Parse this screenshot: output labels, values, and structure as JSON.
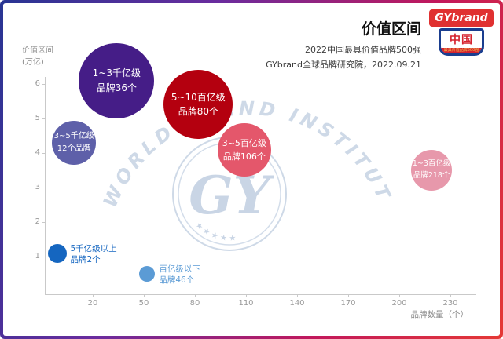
{
  "header": {
    "title": "价值区间",
    "subtitle1": "2022中国最具价值品牌500强",
    "subtitle2": "GYbrand全球品牌研究院，2022.09.21"
  },
  "logo": {
    "brand": "GYbrand",
    "country": "中国",
    "ribbon": "最具价值品牌500强"
  },
  "axes": {
    "y_unit_line1": "价值区间",
    "y_unit_line2": "(万亿)",
    "x_label": "品牌数量（个）"
  },
  "watermark": {
    "arc_text": "WORLD BRAND INSTITUTE",
    "center_text": "GY",
    "stars": "★ ★ ★ ★ ★"
  },
  "colors": {
    "frame_gradient": [
      "#283593",
      "#6a2c9e",
      "#c2185b",
      "#e53935"
    ],
    "logo_red": "#e03131",
    "logo_blue": "#1b3e8f"
  },
  "chart_data": {
    "type": "scatter",
    "title": "价值区间",
    "xlabel": "品牌数量（个）",
    "ylabel": "价值区间(万亿)",
    "xlim": [
      -10,
      245
    ],
    "ylim": [
      0,
      6.8
    ],
    "x_ticks": [
      20,
      50,
      80,
      110,
      140,
      170,
      200,
      230
    ],
    "y_ticks": [
      1,
      2,
      3,
      4,
      5,
      6
    ],
    "grid": false,
    "legend": false,
    "points": [
      {
        "range": "1~3千亿级",
        "label": "品牌36个",
        "x": 34,
        "y": 6.1,
        "r": 48,
        "color": "#451d87",
        "text_color": "#ffffff",
        "label_inside": true
      },
      {
        "range": "5~10百亿级",
        "label": "品牌80个",
        "x": 82,
        "y": 5.4,
        "r": 44,
        "color": "#b4000f",
        "text_color": "#ffffff",
        "label_inside": true
      },
      {
        "range": "3~5千亿级",
        "label": "12个品牌",
        "x": 9,
        "y": 4.3,
        "r": 28,
        "color": "#5e60a9",
        "text_color": "#ffffff",
        "label_inside": true
      },
      {
        "range": "3~5百亿级",
        "label": "品牌106个",
        "x": 109,
        "y": 4.1,
        "r": 34,
        "color": "#e4576b",
        "text_color": "#ffffff",
        "label_inside": true
      },
      {
        "range": "1~3百亿级",
        "label": "品牌218个",
        "x": 219,
        "y": 3.5,
        "r": 26,
        "color": "#e798ab",
        "text_color": "#ffffff",
        "label_inside": true
      },
      {
        "range": "5千亿级以上",
        "label": "品牌2个",
        "x": -1,
        "y": 1.1,
        "r": 12,
        "color": "#1566c0",
        "text_color": "#1566c0",
        "label_inside": false
      },
      {
        "range": "百亿级以下",
        "label": "品牌46个",
        "x": 52,
        "y": 0.5,
        "r": 10,
        "color": "#5b9bd5",
        "text_color": "#5b9bd5",
        "label_inside": false
      }
    ]
  }
}
